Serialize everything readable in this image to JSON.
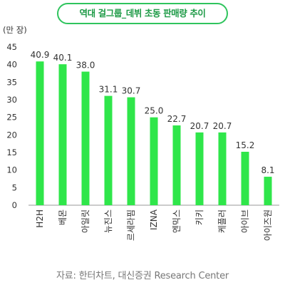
{
  "title": "역대 걸그룹_데뷔 초동 판매량 추이",
  "unit": "(만 장)",
  "source": "자료: 한터차트, 대신증권 Research Center",
  "colors": {
    "bar": "#2fe64a",
    "title_border": "#2fc45d",
    "title_text": "#1d9a46"
  },
  "chart_data": {
    "type": "bar",
    "title": "역대 걸그룹_데뷔 초동 판매량 추이",
    "ylabel": "(만 장)",
    "xlabel": "",
    "ylim": [
      0,
      45
    ],
    "yticks": [
      0,
      5,
      10,
      15,
      20,
      25,
      30,
      35,
      40,
      45
    ],
    "grid": false,
    "categories": [
      "H2H",
      "베몬",
      "아일릿",
      "뉴진스",
      "르세라핌",
      "IZNA",
      "엔믹스",
      "키키",
      "케플러",
      "아이브",
      "아이즈원"
    ],
    "values": [
      40.9,
      40.1,
      38.0,
      31.1,
      30.7,
      25.0,
      22.7,
      20.7,
      20.7,
      15.2,
      8.1
    ],
    "data_labels": [
      "40.9",
      "40.1",
      "38.0",
      "31.1",
      "30.7",
      "25.0",
      "22.7",
      "20.7",
      "20.7",
      "15.2",
      "8.1"
    ]
  }
}
